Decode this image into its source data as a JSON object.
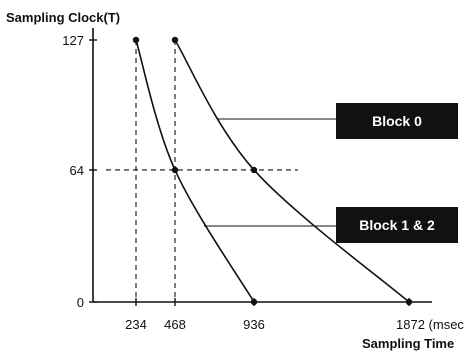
{
  "chart_data": {
    "type": "line",
    "ylabel": "Sampling Clock(T)",
    "xlabel": "Sampling Time",
    "x_ticks": [
      {
        "value": 234,
        "label": "234"
      },
      {
        "value": 468,
        "label": "468"
      },
      {
        "value": 936,
        "label": "936"
      },
      {
        "value": 1872,
        "label": "1872 (msec"
      }
    ],
    "y_ticks": [
      {
        "value": 0,
        "label": "0"
      },
      {
        "value": 64,
        "label": "64"
      },
      {
        "value": 127,
        "label": "127"
      }
    ],
    "series": [
      {
        "name": "Block 1 & 2",
        "points": [
          [
            234,
            127
          ],
          [
            468,
            64
          ],
          [
            936,
            0
          ]
        ]
      },
      {
        "name": "Block 0",
        "points": [
          [
            468,
            127
          ],
          [
            936,
            64
          ],
          [
            1872,
            0
          ]
        ]
      }
    ],
    "callouts": [
      {
        "series": "Block 0",
        "label": "Block 0"
      },
      {
        "series": "Block 1 & 2",
        "label": "Block 1 & 2"
      }
    ]
  }
}
